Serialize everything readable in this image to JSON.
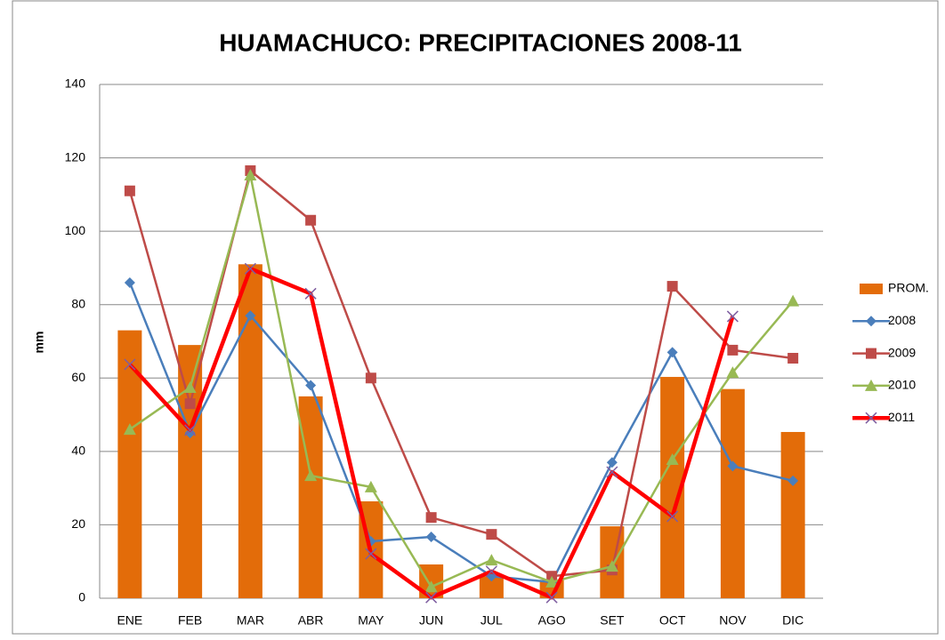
{
  "chart_data": {
    "type": "combo",
    "title": "HUAMACHUCO: PRECIPITACIONES 2008-11",
    "y_label": "mm",
    "categories": [
      "ENE",
      "FEB",
      "MAR",
      "ABR",
      "MAY",
      "JUN",
      "JUL",
      "AGO",
      "SET",
      "OCT",
      "NOV",
      "DIC"
    ],
    "ylim": [
      0,
      140
    ],
    "yticks": [
      0,
      20,
      40,
      60,
      80,
      100,
      120,
      140
    ],
    "grid": true,
    "legend": "right",
    "series": [
      {
        "name": "PROM.",
        "type": "bar",
        "color": "#e36c09",
        "values": [
          73,
          69,
          91,
          55,
          26.4,
          9.2,
          6,
          5,
          19.6,
          60.3,
          57,
          45.3
        ]
      },
      {
        "name": "2008",
        "type": "line",
        "marker": "diamond",
        "color": "#4a7ebb",
        "values": [
          86,
          45,
          77,
          58,
          15.5,
          16.7,
          6,
          4.4,
          37,
          67,
          36,
          32
        ]
      },
      {
        "name": "2009",
        "type": "line",
        "marker": "square",
        "color": "#be4b48",
        "values": [
          111,
          53,
          116.5,
          103,
          60,
          22,
          17.4,
          6,
          7.7,
          85,
          67.6,
          65.4
        ]
      },
      {
        "name": "2010",
        "type": "line",
        "marker": "triangle",
        "color": "#98b954",
        "values": [
          46,
          57.4,
          115.3,
          33.4,
          30.3,
          3.1,
          10.4,
          4.4,
          8.7,
          37.8,
          61.5,
          81
        ]
      },
      {
        "name": "2011",
        "type": "line",
        "marker": "x",
        "color": "#ff0000",
        "marker_color": "#7e5ea0",
        "values": [
          63.7,
          45.8,
          89.8,
          83,
          12.1,
          0.2,
          7.3,
          0.2,
          34.4,
          22.3,
          76.8,
          null
        ]
      }
    ]
  }
}
